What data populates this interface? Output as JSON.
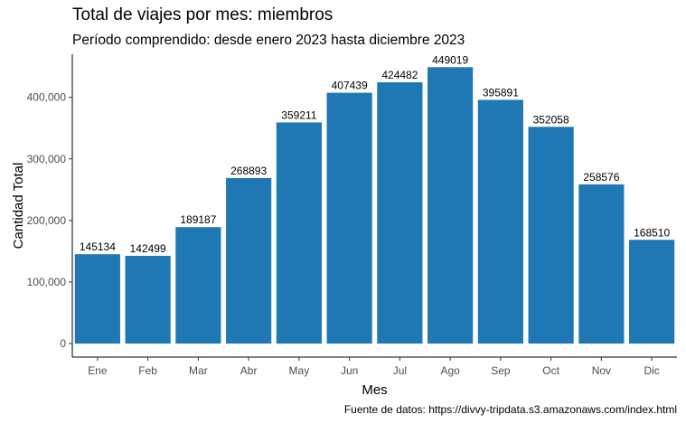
{
  "chart_data": {
    "type": "bar",
    "title": "Total de viajes por mes: miembros",
    "subtitle": "Período comprendido: desde enero 2023 hasta diciembre 2023",
    "caption": "Fuente de datos: https://divvy-tripdata.s3.amazonaws.com/index.html",
    "xlabel": "Mes",
    "ylabel": "Cantidad Total",
    "categories": [
      "Ene",
      "Feb",
      "Mar",
      "Abr",
      "May",
      "Jun",
      "Jul",
      "Ago",
      "Sep",
      "Oct",
      "Nov",
      "Dic"
    ],
    "values": [
      145134,
      142499,
      189187,
      268893,
      359211,
      407439,
      424482,
      449019,
      395891,
      352058,
      258576,
      168510
    ],
    "y_ticks": [
      0,
      100000,
      200000,
      300000,
      400000
    ],
    "y_tick_labels": [
      "0",
      "100,000",
      "200,000",
      "300,000",
      "400,000"
    ],
    "ylim": [
      -22000,
      470000
    ],
    "grid": false,
    "bar_color": "#1f78b4"
  }
}
